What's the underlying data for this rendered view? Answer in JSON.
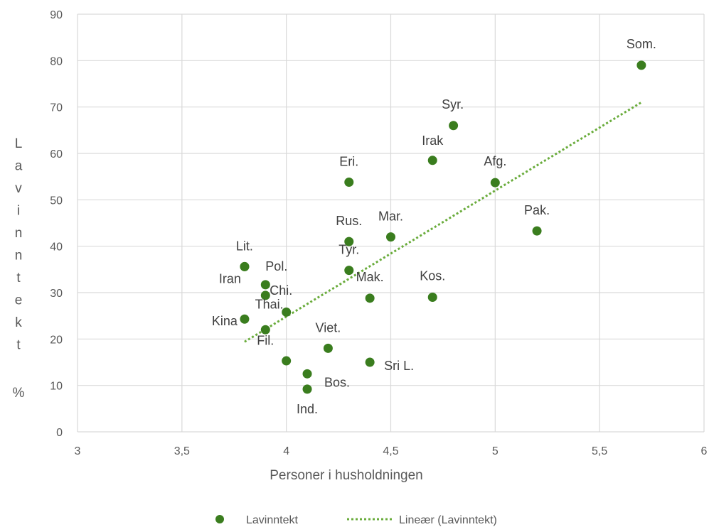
{
  "chart_data": {
    "type": "scatter",
    "xlabel": "Personer i husholdningen",
    "ylabel_chars": [
      "L",
      "a",
      "v",
      "i",
      "n",
      "n",
      "t",
      "e",
      "k",
      "t"
    ],
    "ylabel_unit": "%",
    "xlim": [
      3,
      6
    ],
    "ylim": [
      0,
      90
    ],
    "xticks": [
      3,
      3.5,
      4,
      4.5,
      5,
      5.5,
      6
    ],
    "xtick_labels": [
      "3",
      "3,5",
      "4",
      "4,5",
      "5",
      "5,5",
      "6"
    ],
    "yticks": [
      0,
      10,
      20,
      30,
      40,
      50,
      60,
      70,
      80,
      90
    ],
    "ytick_labels": [
      "0",
      "10",
      "20",
      "30",
      "40",
      "50",
      "60",
      "70",
      "80",
      "90"
    ],
    "grid": true,
    "legend_position": "bottom",
    "colors": {
      "points": "#3a7d1e",
      "trend": "#6aac3c",
      "grid": "#d9d9d9"
    },
    "series": [
      {
        "name": "Lavinntekt",
        "points": [
          {
            "label": "Som.",
            "x": 5.7,
            "y": 79
          },
          {
            "label": "Syr.",
            "x": 4.8,
            "y": 66
          },
          {
            "label": "Irak",
            "x": 4.7,
            "y": 58.5
          },
          {
            "label": "Afg.",
            "x": 5.0,
            "y": 53.7
          },
          {
            "label": "Eri.",
            "x": 4.3,
            "y": 53.8
          },
          {
            "label": "Pak.",
            "x": 5.2,
            "y": 43.3
          },
          {
            "label": "Mar.",
            "x": 4.5,
            "y": 42
          },
          {
            "label": "Rus.",
            "x": 4.3,
            "y": 41
          },
          {
            "label": "Tyr.",
            "x": 4.3,
            "y": 34.8
          },
          {
            "label": "Lit.",
            "x": 3.8,
            "y": 35.6
          },
          {
            "label": "Iran",
            "x": 3.8,
            "y": 35.6
          },
          {
            "label": "Pol.",
            "x": 3.9,
            "y": 31.7
          },
          {
            "label": "Chi.",
            "x": 3.9,
            "y": 29.4
          },
          {
            "label": "Mak.",
            "x": 4.4,
            "y": 28.8
          },
          {
            "label": "Kos.",
            "x": 4.7,
            "y": 29
          },
          {
            "label": "Thai.",
            "x": 4.0,
            "y": 25.8
          },
          {
            "label": "Kina",
            "x": 3.8,
            "y": 24.3
          },
          {
            "label": "Fil.",
            "x": 3.9,
            "y": 22
          },
          {
            "label": "Viet.",
            "x": 4.2,
            "y": 18
          },
          {
            "label": "Sri L.",
            "x": 4.4,
            "y": 15
          },
          {
            "label": "",
            "x": 4.0,
            "y": 15.3
          },
          {
            "label": "Bos.",
            "x": 4.1,
            "y": 12.5
          },
          {
            "label": "Ind.",
            "x": 4.1,
            "y": 9.2
          }
        ]
      }
    ],
    "trendline": {
      "name": "Lineær (Lavinntekt)",
      "style": "dotted",
      "start": {
        "x": 3.8,
        "y": 19.4
      },
      "end": {
        "x": 5.7,
        "y": 71
      }
    },
    "legend": [
      {
        "label": "Lavinntekt",
        "kind": "marker"
      },
      {
        "label": "Lineær (Lavinntekt)",
        "kind": "dotted-line"
      }
    ]
  }
}
